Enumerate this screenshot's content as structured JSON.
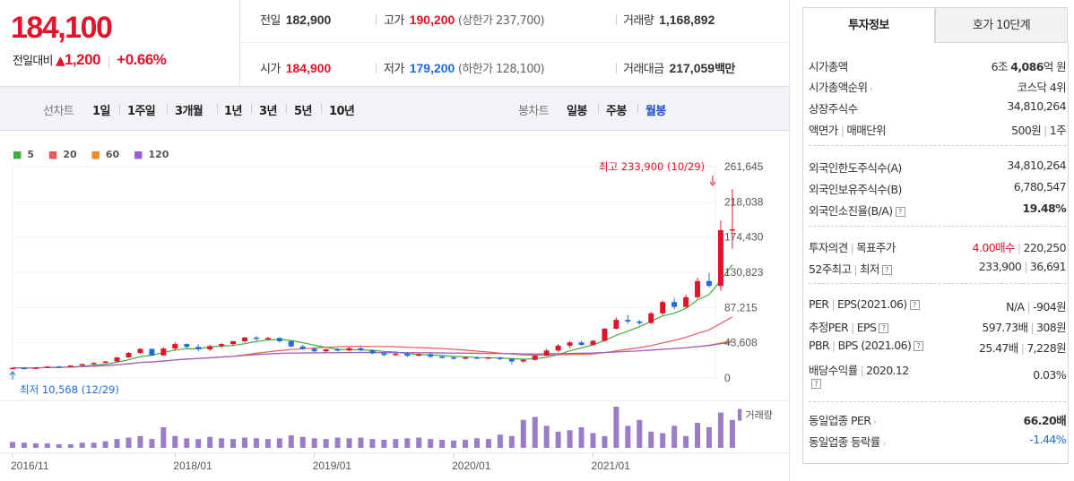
{
  "price": {
    "current": "184,100",
    "change_label": "전일대비",
    "change_icon": "up-triangle",
    "change_value": "1,200",
    "change_pct": "+0.66%"
  },
  "summary": {
    "prev_label": "전일",
    "prev_value": "182,900",
    "high_label": "고가",
    "high_value": "190,200",
    "upper_limit": "(상한가 237,700)",
    "volume_label": "거래량",
    "volume_value": "1,168,892",
    "open_label": "시가",
    "open_value": "184,900",
    "low_label": "저가",
    "low_value": "179,200",
    "lower_limit": "(하한가 128,100)",
    "amount_label": "거래대금",
    "amount_value": "217,059",
    "amount_unit": "백만"
  },
  "tabs": {
    "line_label": "선차트",
    "line_items": [
      "1일",
      "1주일",
      "3개월",
      "1년",
      "3년",
      "5년",
      "10년"
    ],
    "candle_label": "봉차트",
    "candle_items": [
      "일봉",
      "주봉",
      "월봉"
    ],
    "candle_active": "월봉"
  },
  "chart_data": {
    "type": "candlestick",
    "legend": [
      {
        "name": "5",
        "color": "#3fae3f"
      },
      {
        "name": "20",
        "color": "#e85a5a"
      },
      {
        "name": "60",
        "color": "#f08a24"
      },
      {
        "name": "120",
        "color": "#9a5fd0"
      }
    ],
    "y_ticks": [
      "261,645",
      "218,038",
      "174,430",
      "130,823",
      "87,215",
      "43,608",
      "0"
    ],
    "ylim": [
      0,
      261645
    ],
    "x_ticks": [
      "2016/11",
      "2018/01",
      "2019/01",
      "2020/01",
      "2021/01"
    ],
    "annotation_high": "최고 233,900 (10/29)",
    "annotation_low": "최저 10,568 (12/29)",
    "volume_label": "거래량",
    "ohlc": [
      [
        11500,
        12800,
        10568,
        12600
      ],
      [
        12600,
        13500,
        11800,
        12200
      ],
      [
        12200,
        13000,
        11500,
        12900
      ],
      [
        12900,
        14500,
        12500,
        14200
      ],
      [
        14200,
        15200,
        13200,
        13600
      ],
      [
        13600,
        15800,
        13400,
        15500
      ],
      [
        15500,
        17500,
        15000,
        17200
      ],
      [
        17200,
        19200,
        16500,
        18800
      ],
      [
        18800,
        21000,
        18000,
        20500
      ],
      [
        20500,
        26000,
        20000,
        25500
      ],
      [
        25500,
        32000,
        25000,
        31000
      ],
      [
        31000,
        37000,
        29500,
        36000
      ],
      [
        36000,
        36500,
        27000,
        28000
      ],
      [
        28000,
        38000,
        27500,
        36500
      ],
      [
        36500,
        44000,
        34000,
        42000
      ],
      [
        42000,
        43000,
        37000,
        38500
      ],
      [
        38500,
        42000,
        33000,
        35500
      ],
      [
        35500,
        41000,
        33500,
        39500
      ],
      [
        39500,
        43000,
        37000,
        42000
      ],
      [
        42000,
        46000,
        39500,
        45500
      ],
      [
        45500,
        51000,
        44000,
        50000
      ],
      [
        50000,
        52000,
        46000,
        48500
      ],
      [
        48500,
        51000,
        46500,
        49500
      ],
      [
        49500,
        50500,
        44000,
        45500
      ],
      [
        45500,
        46000,
        38000,
        39000
      ],
      [
        39000,
        41000,
        35000,
        36000
      ],
      [
        36000,
        38000,
        32000,
        33000
      ],
      [
        33000,
        36000,
        32000,
        35500
      ],
      [
        35500,
        37000,
        33000,
        34000
      ],
      [
        34000,
        38000,
        33500,
        37000
      ],
      [
        37000,
        38000,
        33000,
        34500
      ],
      [
        34500,
        35500,
        29500,
        30500
      ],
      [
        30500,
        32000,
        27000,
        28500
      ],
      [
        28500,
        31000,
        27500,
        30000
      ],
      [
        30000,
        31000,
        26000,
        27500
      ],
      [
        27500,
        30500,
        27000,
        29500
      ],
      [
        29500,
        31000,
        25000,
        26500
      ],
      [
        26500,
        28000,
        24000,
        25500
      ],
      [
        25500,
        27000,
        23000,
        24500
      ],
      [
        24500,
        26500,
        23500,
        25500
      ],
      [
        25500,
        26500,
        23500,
        24500
      ],
      [
        24500,
        26000,
        23500,
        25500
      ],
      [
        25500,
        26500,
        22000,
        23500
      ],
      [
        23500,
        25000,
        17000,
        20500
      ],
      [
        20500,
        23000,
        19000,
        22500
      ],
      [
        22500,
        28000,
        22000,
        27500
      ],
      [
        27500,
        36000,
        27000,
        34000
      ],
      [
        34000,
        42000,
        32000,
        40000
      ],
      [
        40000,
        46000,
        37000,
        44000
      ],
      [
        44000,
        46000,
        40000,
        41000
      ],
      [
        41000,
        47000,
        40500,
        46000
      ],
      [
        46000,
        62000,
        45000,
        61000
      ],
      [
        61000,
        75000,
        60000,
        72000
      ],
      [
        72000,
        78000,
        67000,
        70000
      ],
      [
        70000,
        72000,
        66000,
        68000
      ],
      [
        68000,
        82000,
        67000,
        80000
      ],
      [
        80000,
        96000,
        78000,
        94000
      ],
      [
        94000,
        99000,
        85000,
        88000
      ],
      [
        88000,
        103000,
        86000,
        100000
      ],
      [
        100000,
        124000,
        98000,
        120000
      ],
      [
        120000,
        130000,
        112000,
        114000
      ],
      [
        114000,
        195000,
        108000,
        182900
      ],
      [
        182900,
        233900,
        160000,
        184100
      ]
    ],
    "volume": [
      8,
      7,
      6,
      6,
      5,
      5,
      7,
      7,
      9,
      12,
      14,
      16,
      12,
      28,
      16,
      13,
      12,
      15,
      13,
      12,
      14,
      13,
      12,
      13,
      17,
      15,
      13,
      12,
      14,
      13,
      14,
      12,
      11,
      12,
      13,
      14,
      12,
      11,
      10,
      11,
      13,
      12,
      18,
      16,
      38,
      42,
      30,
      22,
      24,
      28,
      20,
      16,
      56,
      30,
      38,
      22,
      20,
      30,
      16,
      34,
      28,
      48,
      38
    ]
  },
  "right_panel": {
    "tab_active": "투자정보",
    "tab_other": "호가 10단계",
    "rows": {
      "cap_label": "시가총액",
      "cap_pre": "6조",
      "cap_bold": "4,086",
      "cap_unit": "억 원",
      "rank_label": "시가총액순위",
      "rank_value": "코스닥 4위",
      "shares_label": "상장주식수",
      "shares_value": "34,810,264",
      "face_label": "액면가",
      "face_label2": "매매단위",
      "face_value": "500원",
      "face_value2": "1주",
      "flim_label": "외국인한도주식수(A)",
      "flim_value": "34,810,264",
      "fhold_label": "외국인보유주식수(B)",
      "fhold_value": "6,780,547",
      "fratio_label": "외국인소진율(B/A)",
      "fratio_value": "19.48%",
      "op_label": "투자의견",
      "op_label2": "목표주가",
      "op_value": "4.00매수",
      "op_value2": "220,250",
      "w52_label": "52주최고",
      "w52_label2": "최저",
      "w52_value": "233,900",
      "w52_value2": "36,691",
      "per_label": "PER",
      "per_label2": "EPS(2021.06)",
      "per_value": "N/A",
      "per_value2": "-904원",
      "eper_label": "추정PER",
      "eper_label2": "EPS",
      "eper_value": "597.73배",
      "eper_value2": "308원",
      "pbr_label": "PBR",
      "pbr_label2": "BPS (2021.06)",
      "pbr_value": "25.47배",
      "pbr_value2": "7,228원",
      "div_label": "배당수익률",
      "div_label2": "2020.12",
      "div_value": "0.03%",
      "sper_label": "동일업종 PER",
      "sper_value": "66.20배",
      "srate_label": "동일업종 등락률",
      "srate_value": "-1.44%"
    }
  }
}
